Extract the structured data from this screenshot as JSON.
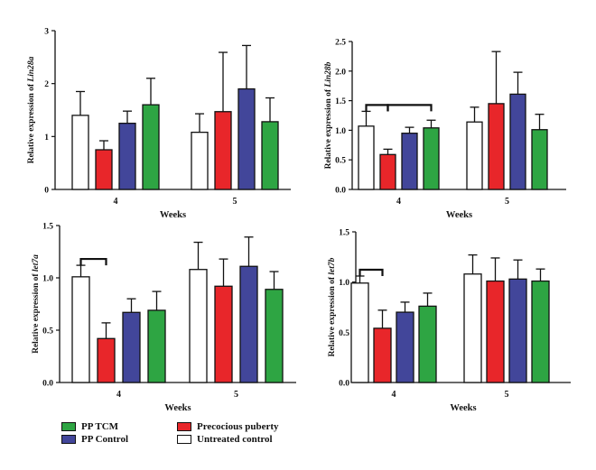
{
  "colors": {
    "untreated": "#ffffff",
    "pp": "#e8262a",
    "ppcontrol": "#42469a",
    "pptcm": "#2ea543",
    "outline": "#111111"
  },
  "legend": {
    "items": [
      {
        "key": "pptcm",
        "label": "PP TCM"
      },
      {
        "key": "ppcontrol",
        "label": "PP Control"
      },
      {
        "key": "pp",
        "label": "Precocious puberty"
      },
      {
        "key": "untreated",
        "label": "Untreated control"
      }
    ]
  },
  "chart_data": [
    {
      "type": "bar",
      "title": "",
      "xlabel": "Weeks",
      "ylabel_prefix": "Relative expression of ",
      "ylabel_gene": "Lin28a",
      "categories": [
        "4",
        "5"
      ],
      "ylim": [
        0,
        3
      ],
      "yticks": [
        "0",
        "1",
        "2",
        "3"
      ],
      "series": [
        {
          "name": "Untreated control",
          "key": "untreated",
          "values": [
            1.4,
            1.08
          ],
          "errors": [
            0.45,
            0.35
          ]
        },
        {
          "name": "Precocious puberty",
          "key": "pp",
          "values": [
            0.75,
            1.47
          ],
          "errors": [
            0.17,
            1.12
          ]
        },
        {
          "name": "PP Control",
          "key": "ppcontrol",
          "values": [
            1.25,
            1.9
          ],
          "errors": [
            0.23,
            0.82
          ]
        },
        {
          "name": "PP TCM",
          "key": "pptcm",
          "values": [
            1.6,
            1.28
          ],
          "errors": [
            0.5,
            0.45
          ]
        }
      ],
      "brackets": []
    },
    {
      "type": "bar",
      "title": "",
      "xlabel": "Weeks",
      "ylabel_prefix": "Relative expression of ",
      "ylabel_gene": "Lin28b",
      "categories": [
        "4",
        "5"
      ],
      "ylim": [
        0,
        2.5
      ],
      "yticks": [
        "0.0",
        "0.5",
        "1.0",
        "1.5",
        "2.0",
        "2.5"
      ],
      "series": [
        {
          "name": "Untreated control",
          "key": "untreated",
          "values": [
            1.07,
            1.14
          ],
          "errors": [
            0.25,
            0.25
          ]
        },
        {
          "name": "Precocious puberty",
          "key": "pp",
          "values": [
            0.59,
            1.45
          ],
          "errors": [
            0.09,
            0.88
          ]
        },
        {
          "name": "PP Control",
          "key": "ppcontrol",
          "values": [
            0.95,
            1.61
          ],
          "errors": [
            0.1,
            0.37
          ]
        },
        {
          "name": "PP TCM",
          "key": "pptcm",
          "values": [
            1.04,
            1.01
          ],
          "errors": [
            0.13,
            0.26
          ]
        }
      ],
      "brackets": [
        {
          "category": 0,
          "from": 0,
          "to": 1
        },
        {
          "category": 0,
          "from": 1,
          "to": 3
        }
      ]
    },
    {
      "type": "bar",
      "title": "",
      "xlabel": "Weeks",
      "ylabel_prefix": "Relative expression of ",
      "ylabel_gene": "let7a",
      "categories": [
        "4",
        "5"
      ],
      "ylim": [
        0,
        1.5
      ],
      "yticks": [
        "0.0",
        "0.5",
        "1.0",
        "1.5"
      ],
      "series": [
        {
          "name": "Untreated control",
          "key": "untreated",
          "values": [
            1.01,
            1.08
          ],
          "errors": [
            0.11,
            0.26
          ]
        },
        {
          "name": "Precocious puberty",
          "key": "pp",
          "values": [
            0.42,
            0.92
          ],
          "errors": [
            0.15,
            0.26
          ]
        },
        {
          "name": "PP Control",
          "key": "ppcontrol",
          "values": [
            0.67,
            1.11
          ],
          "errors": [
            0.13,
            0.28
          ]
        },
        {
          "name": "PP TCM",
          "key": "pptcm",
          "values": [
            0.69,
            0.89
          ],
          "errors": [
            0.18,
            0.17
          ]
        }
      ],
      "brackets": [
        {
          "category": 0,
          "from": 0,
          "to": 1
        }
      ]
    },
    {
      "type": "bar",
      "title": "",
      "xlabel": "Weeks",
      "ylabel_prefix": "Relative expression of ",
      "ylabel_gene": "let7b",
      "categories": [
        "4",
        "5"
      ],
      "ylim": [
        0,
        1.5
      ],
      "yticks": [
        "0.0",
        "0.5",
        "1.0",
        "1.5"
      ],
      "series": [
        {
          "name": "Untreated control",
          "key": "untreated",
          "values": [
            0.99,
            1.08
          ],
          "errors": [
            0.07,
            0.19
          ]
        },
        {
          "name": "Precocious puberty",
          "key": "pp",
          "values": [
            0.54,
            1.01
          ],
          "errors": [
            0.18,
            0.23
          ]
        },
        {
          "name": "PP Control",
          "key": "ppcontrol",
          "values": [
            0.7,
            1.03
          ],
          "errors": [
            0.1,
            0.19
          ]
        },
        {
          "name": "PP TCM",
          "key": "pptcm",
          "values": [
            0.76,
            1.01
          ],
          "errors": [
            0.13,
            0.12
          ]
        }
      ],
      "brackets": [
        {
          "category": 0,
          "from": 0,
          "to": 1
        }
      ]
    }
  ]
}
